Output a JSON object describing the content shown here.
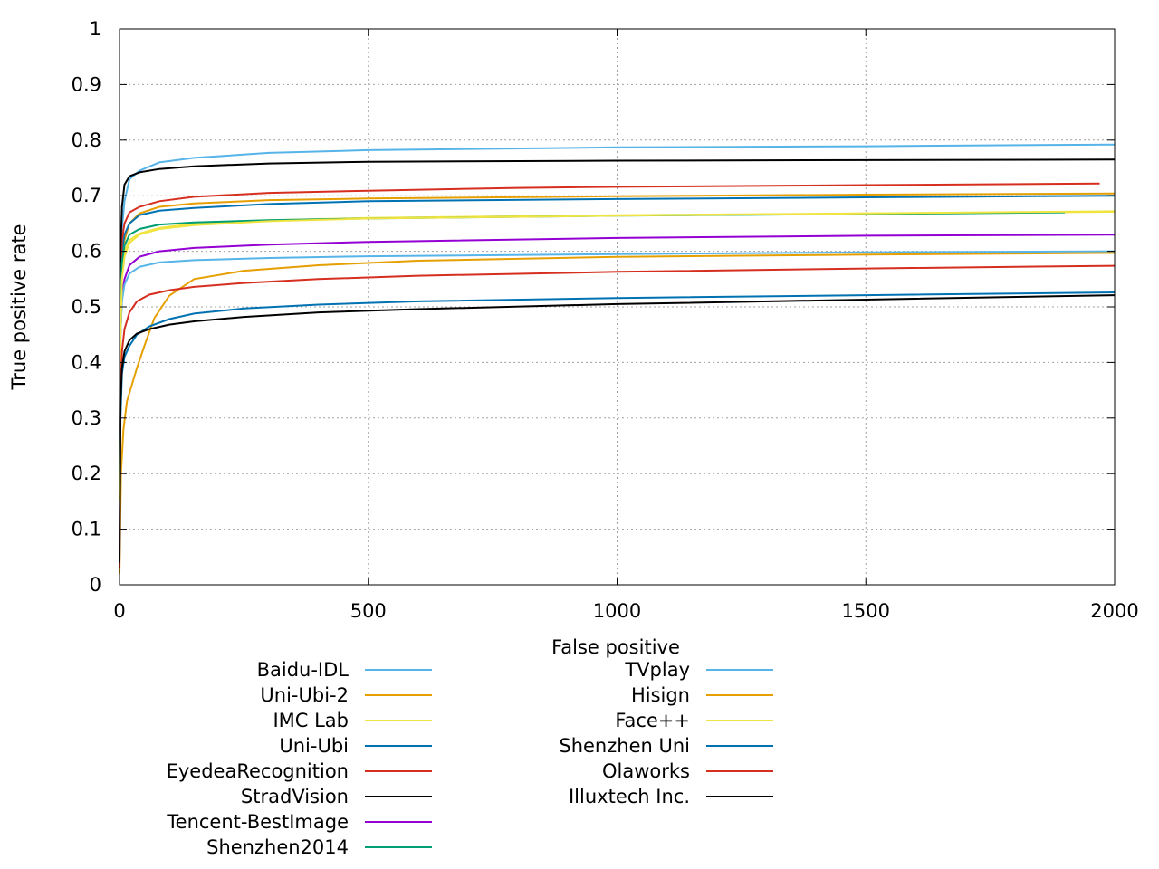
{
  "chart_data": {
    "type": "line",
    "title": "",
    "xlabel": "False positive",
    "ylabel": "True positive rate",
    "xlim": [
      0,
      2000
    ],
    "ylim": [
      0,
      1
    ],
    "xticks": [
      0,
      500,
      1000,
      1500,
      2000
    ],
    "yticks": [
      0,
      0.1,
      0.2,
      0.3,
      0.4,
      0.5,
      0.6,
      0.7,
      0.8,
      0.9,
      1
    ],
    "grid": true,
    "legend_placement": "bottom, two columns",
    "series": [
      {
        "name": "Baidu-IDL",
        "color": "#56b4e9",
        "x": [
          0,
          2,
          5,
          10,
          20,
          40,
          80,
          150,
          300,
          500,
          1000,
          1500,
          2000
        ],
        "y": [
          0.16,
          0.55,
          0.64,
          0.69,
          0.73,
          0.745,
          0.76,
          0.768,
          0.777,
          0.782,
          0.787,
          0.789,
          0.792
        ]
      },
      {
        "name": "Uni-Ubi-2",
        "color": "#e69f00",
        "x": [
          0,
          2,
          5,
          10,
          20,
          40,
          80,
          150,
          300,
          500,
          1000,
          1500,
          2000
        ],
        "y": [
          0.15,
          0.5,
          0.58,
          0.62,
          0.65,
          0.668,
          0.68,
          0.686,
          0.692,
          0.695,
          0.699,
          0.702,
          0.704
        ]
      },
      {
        "name": "IMC Lab",
        "color": "#f0e442",
        "x": [
          0,
          2,
          5,
          10,
          20,
          40,
          80,
          150,
          300,
          500,
          1000,
          1500,
          2000
        ],
        "y": [
          0.15,
          0.5,
          0.57,
          0.6,
          0.62,
          0.632,
          0.642,
          0.65,
          0.656,
          0.66,
          0.665,
          0.668,
          0.671
        ]
      },
      {
        "name": "Uni-Ubi",
        "color": "#0072b2",
        "x": [
          0,
          2,
          5,
          10,
          20,
          40,
          80,
          150,
          300,
          500,
          1000,
          1500,
          2000
        ],
        "y": [
          0.15,
          0.5,
          0.6,
          0.63,
          0.65,
          0.665,
          0.673,
          0.678,
          0.685,
          0.69,
          0.694,
          0.697,
          0.7
        ]
      },
      {
        "name": "EyedeaRecognition",
        "color": "#d62e1f",
        "x": [
          0,
          2,
          5,
          10,
          20,
          40,
          80,
          150,
          300,
          500,
          800,
          1000,
          1500,
          1970
        ],
        "y": [
          0.16,
          0.55,
          0.62,
          0.65,
          0.67,
          0.68,
          0.69,
          0.698,
          0.705,
          0.709,
          0.714,
          0.716,
          0.719,
          0.722
        ]
      },
      {
        "name": "StradVision",
        "color": "#000000",
        "x": [
          0,
          2,
          5,
          10,
          20,
          40,
          80,
          150,
          300,
          500,
          1000,
          1500,
          2000
        ],
        "y": [
          0.17,
          0.6,
          0.68,
          0.72,
          0.735,
          0.742,
          0.748,
          0.753,
          0.758,
          0.761,
          0.763,
          0.764,
          0.765
        ]
      },
      {
        "name": "Tencent-BestImage",
        "color": "#9400d3",
        "x": [
          0,
          2,
          5,
          10,
          20,
          40,
          80,
          150,
          300,
          500,
          1000,
          1500,
          2000
        ],
        "y": [
          0.15,
          0.45,
          0.52,
          0.55,
          0.575,
          0.59,
          0.6,
          0.606,
          0.612,
          0.617,
          0.624,
          0.628,
          0.63
        ]
      },
      {
        "name": "Shenzhen2014",
        "color": "#009e73",
        "x": [
          0,
          2,
          5,
          10,
          20,
          40,
          80,
          150,
          300,
          500,
          1000,
          1500,
          1900
        ],
        "y": [
          0.15,
          0.5,
          0.58,
          0.61,
          0.63,
          0.64,
          0.648,
          0.652,
          0.656,
          0.659,
          0.664,
          0.667,
          0.67
        ]
      },
      {
        "name": "TVplay",
        "color": "#56b4e9",
        "x": [
          0,
          2,
          5,
          10,
          20,
          40,
          80,
          150,
          300,
          500,
          1000,
          1500,
          2000
        ],
        "y": [
          0.15,
          0.45,
          0.51,
          0.54,
          0.56,
          0.572,
          0.58,
          0.584,
          0.588,
          0.591,
          0.595,
          0.598,
          0.6
        ]
      },
      {
        "name": "Hisign",
        "color": "#e69f00",
        "x": [
          0,
          3,
          8,
          15,
          25,
          35,
          50,
          70,
          100,
          150,
          250,
          400,
          600,
          1000,
          1500,
          2000
        ],
        "y": [
          0.02,
          0.2,
          0.28,
          0.33,
          0.36,
          0.39,
          0.43,
          0.48,
          0.52,
          0.55,
          0.565,
          0.575,
          0.583,
          0.59,
          0.594,
          0.597
        ]
      },
      {
        "name": "Face++",
        "color": "#f0e442",
        "x": [
          0,
          2,
          5,
          10,
          20,
          40,
          80,
          150,
          300,
          500,
          1000,
          1500,
          2000
        ],
        "y": [
          0.15,
          0.45,
          0.55,
          0.59,
          0.615,
          0.63,
          0.64,
          0.647,
          0.654,
          0.659,
          0.664,
          0.668,
          0.672
        ]
      },
      {
        "name": "Shenzhen Uni",
        "color": "#0072b2",
        "x": [
          0,
          2,
          5,
          10,
          20,
          35,
          60,
          100,
          150,
          250,
          400,
          600,
          1000,
          1500,
          2000
        ],
        "y": [
          0.05,
          0.3,
          0.38,
          0.41,
          0.43,
          0.45,
          0.465,
          0.478,
          0.488,
          0.497,
          0.504,
          0.51,
          0.516,
          0.521,
          0.526
        ]
      },
      {
        "name": "Olaworks",
        "color": "#d62e1f",
        "x": [
          0,
          2,
          5,
          10,
          20,
          35,
          60,
          100,
          150,
          250,
          400,
          600,
          1000,
          1500,
          2000
        ],
        "y": [
          0.03,
          0.35,
          0.42,
          0.46,
          0.49,
          0.51,
          0.522,
          0.53,
          0.536,
          0.543,
          0.55,
          0.556,
          0.563,
          0.569,
          0.574
        ]
      },
      {
        "name": "Illuxtech Inc.",
        "color": "#000000",
        "x": [
          0,
          2,
          5,
          10,
          20,
          35,
          60,
          100,
          150,
          250,
          400,
          600,
          1000,
          1500,
          2000
        ],
        "y": [
          0.04,
          0.33,
          0.39,
          0.42,
          0.44,
          0.452,
          0.46,
          0.468,
          0.474,
          0.482,
          0.49,
          0.496,
          0.505,
          0.513,
          0.521
        ]
      }
    ]
  }
}
